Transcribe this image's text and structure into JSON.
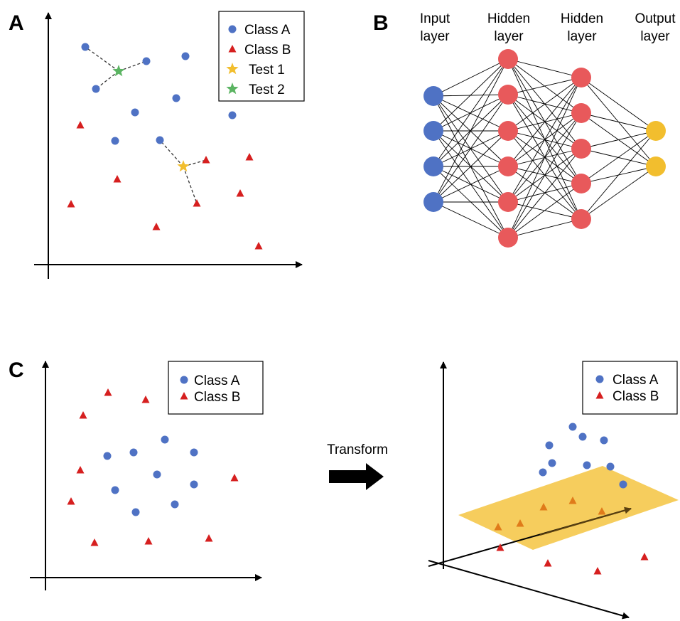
{
  "panels": {
    "a": "A",
    "b": "B",
    "c": "C"
  },
  "colors": {
    "class_a": "#4f72c4",
    "class_b": "#d61f1f",
    "test1": "#f2be2e",
    "test2": "#5bb462",
    "neuron_input": "#4f72c4",
    "neuron_hidden": "#e8595b",
    "neuron_output": "#f2be2e",
    "plane": "#f5c84b",
    "triangle_on_plane": "#e07b1a"
  },
  "legend_a": [
    "Class A",
    "Class B",
    "Test 1",
    "Test 2"
  ],
  "legend_c_left": [
    "Class A",
    "Class B"
  ],
  "legend_c_right": [
    "Class A",
    "Class B"
  ],
  "layers": [
    {
      "line1": "Input",
      "line2": "layer",
      "neurons": 4,
      "role": "input"
    },
    {
      "line1": "Hidden",
      "line2": "layer",
      "neurons": 6,
      "role": "hidden"
    },
    {
      "line1": "Hidden",
      "line2": "layer",
      "neurons": 5,
      "role": "hidden"
    },
    {
      "line1": "Output",
      "line2": "layer",
      "neurons": 2,
      "role": "output"
    }
  ],
  "transform_label": "Transform"
}
